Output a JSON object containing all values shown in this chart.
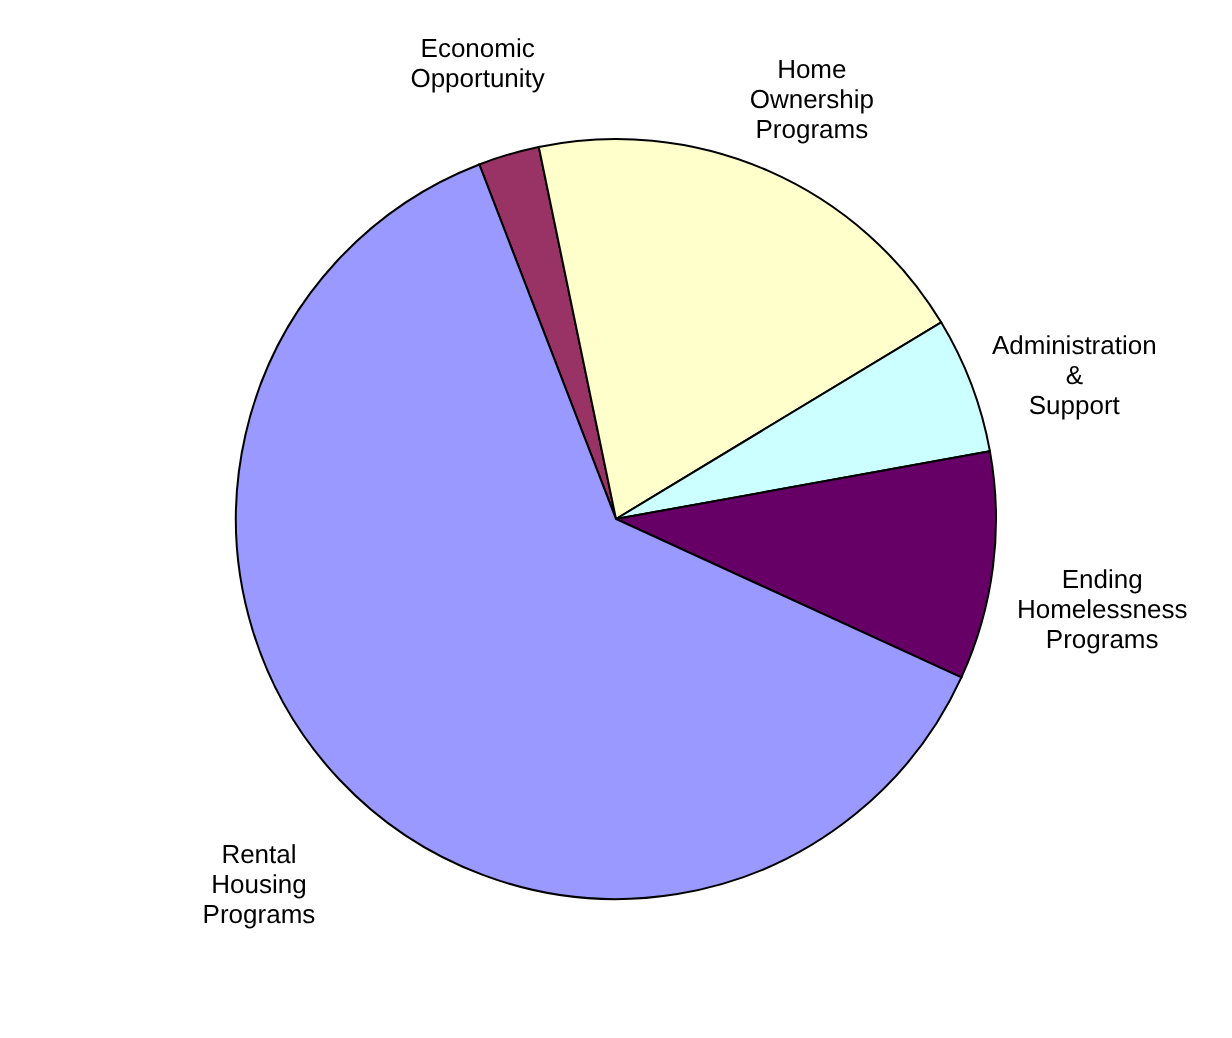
{
  "chart_data": {
    "type": "pie",
    "categories": [
      "Economic Opportunity",
      "Home Ownership Programs",
      "Administration & Support",
      "Ending Homelessness Programs",
      "Rental Housing Programs"
    ],
    "values": [
      2.6,
      19.6,
      5.8,
      9.7,
      62.3
    ],
    "colors": [
      "#993366",
      "#ffffcc",
      "#ccffff",
      "#660066",
      "#9999ff"
    ]
  }
}
